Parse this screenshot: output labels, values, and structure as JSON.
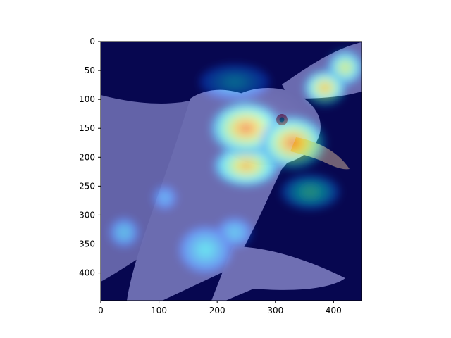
{
  "chart_data": {
    "type": "heatmap",
    "title": "",
    "xlabel": "",
    "ylabel": "",
    "xlim": [
      0,
      448
    ],
    "ylim": [
      448,
      0
    ],
    "x_ticks": [
      0,
      100,
      200,
      300,
      400
    ],
    "y_ticks": [
      0,
      50,
      100,
      150,
      200,
      250,
      300,
      350,
      400
    ],
    "x_tick_labels": [
      "0",
      "100",
      "200",
      "300",
      "400"
    ],
    "y_tick_labels": [
      "0",
      "50",
      "100",
      "150",
      "200",
      "250",
      "300",
      "350",
      "400"
    ],
    "colormap": "jet",
    "overlay_alpha": 0.5,
    "background_image": "seagull-photo",
    "hotspots": [
      {
        "x": 250,
        "y": 150,
        "sx": 60,
        "sy": 45,
        "v": 0.95
      },
      {
        "x": 330,
        "y": 175,
        "sx": 55,
        "sy": 45,
        "v": 0.95
      },
      {
        "x": 250,
        "y": 215,
        "sx": 55,
        "sy": 35,
        "v": 0.85
      },
      {
        "x": 385,
        "y": 80,
        "sx": 35,
        "sy": 30,
        "v": 0.85
      },
      {
        "x": 420,
        "y": 45,
        "sx": 30,
        "sy": 30,
        "v": 0.7
      },
      {
        "x": 360,
        "y": 260,
        "sx": 50,
        "sy": 30,
        "v": 0.5
      },
      {
        "x": 230,
        "y": 70,
        "sx": 60,
        "sy": 30,
        "v": 0.35
      },
      {
        "x": 180,
        "y": 360,
        "sx": 45,
        "sy": 40,
        "v": 0.4
      },
      {
        "x": 230,
        "y": 330,
        "sx": 30,
        "sy": 25,
        "v": 0.35
      },
      {
        "x": 40,
        "y": 330,
        "sx": 25,
        "sy": 25,
        "v": 0.35
      },
      {
        "x": 110,
        "y": 270,
        "sx": 20,
        "sy": 20,
        "v": 0.3
      }
    ]
  }
}
